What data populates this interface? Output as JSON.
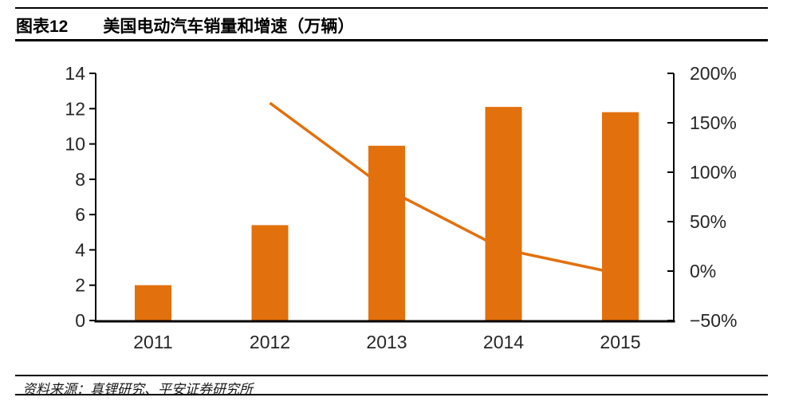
{
  "header": {
    "figure_label": "图表12",
    "title": "美国电动汽车销量和增速（万辆）"
  },
  "footer": {
    "source_text": "资料来源：真锂研究、平安证券研究所"
  },
  "chart_data": {
    "type": "combo-bar-line",
    "title": "美国电动汽车销量和增速（万辆）",
    "categories": [
      "2011",
      "2012",
      "2013",
      "2014",
      "2015"
    ],
    "series": [
      {
        "name": "销量（万辆）",
        "type": "bar",
        "axis": "left",
        "color": "#E2700D",
        "values": [
          2.0,
          5.4,
          9.9,
          12.1,
          11.8
        ]
      },
      {
        "name": "增速",
        "type": "line",
        "axis": "right",
        "color": "#E2700D",
        "values": [
          null,
          170,
          83,
          22,
          -3
        ]
      }
    ],
    "left_axis": {
      "min": 0,
      "max": 14,
      "tick_values": [
        0,
        2,
        4,
        6,
        8,
        10,
        12,
        14
      ],
      "tick_labels": [
        "0",
        "2",
        "4",
        "6",
        "8",
        "10",
        "12",
        "14"
      ]
    },
    "right_axis": {
      "min": -50,
      "max": 200,
      "tick_values": [
        -50,
        0,
        50,
        100,
        150,
        200
      ],
      "tick_labels": [
        "−50%",
        "0%",
        "50%",
        "100%",
        "150%",
        "200%"
      ]
    },
    "legend": "none",
    "grid": false,
    "plot_background": "#ffffff"
  }
}
